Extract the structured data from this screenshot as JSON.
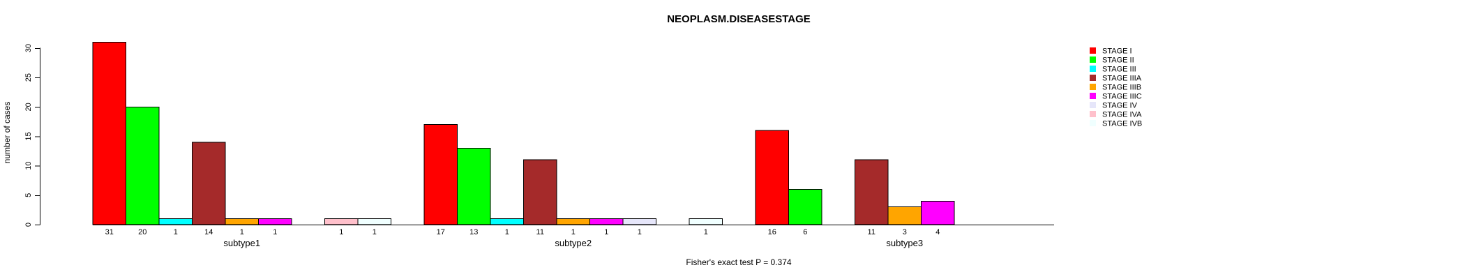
{
  "figure": {
    "title": "NEOPLASM.DISEASESTAGE",
    "ylabel": "number of cases",
    "footnote": "Fisher's exact test P = 0.374"
  },
  "chart_data": {
    "type": "bar",
    "title": "NEOPLASM.DISEASESTAGE",
    "xlabel": "",
    "ylabel": "number of cases",
    "ylim": [
      0,
      31
    ],
    "yticks": [
      0,
      5,
      10,
      15,
      20,
      25,
      30
    ],
    "grid": false,
    "legend_position": "top-right",
    "bar_value_labels": "shown under each bar when value > 0",
    "annotation": "Fisher's exact test P = 0.374",
    "categories": [
      "subtype1",
      "subtype2",
      "subtype3"
    ],
    "series": [
      {
        "name": "STAGE I",
        "color": "#FF0000",
        "values": [
          31,
          17,
          16
        ]
      },
      {
        "name": "STAGE II",
        "color": "#00FF00",
        "values": [
          20,
          13,
          6
        ]
      },
      {
        "name": "STAGE III",
        "color": "#00FFFF",
        "values": [
          1,
          1,
          0
        ]
      },
      {
        "name": "STAGE IIIA",
        "color": "#A52A2A",
        "values": [
          14,
          11,
          11
        ]
      },
      {
        "name": "STAGE IIIB",
        "color": "#FFA500",
        "values": [
          1,
          1,
          3
        ]
      },
      {
        "name": "STAGE IIIC",
        "color": "#FF00FF",
        "values": [
          1,
          1,
          4
        ]
      },
      {
        "name": "STAGE IV",
        "color": "#E6E6FA",
        "values": [
          0,
          1,
          0
        ]
      },
      {
        "name": "STAGE IVA",
        "color": "#FFC0CB",
        "values": [
          1,
          0,
          0
        ]
      },
      {
        "name": "STAGE IVB",
        "color": "#F0FFFF",
        "values": [
          1,
          1,
          0
        ]
      }
    ],
    "colors": {
      "bar_border": "#000000",
      "axis": "#000000",
      "text": "#000000",
      "background": "#FFFFFF"
    }
  }
}
